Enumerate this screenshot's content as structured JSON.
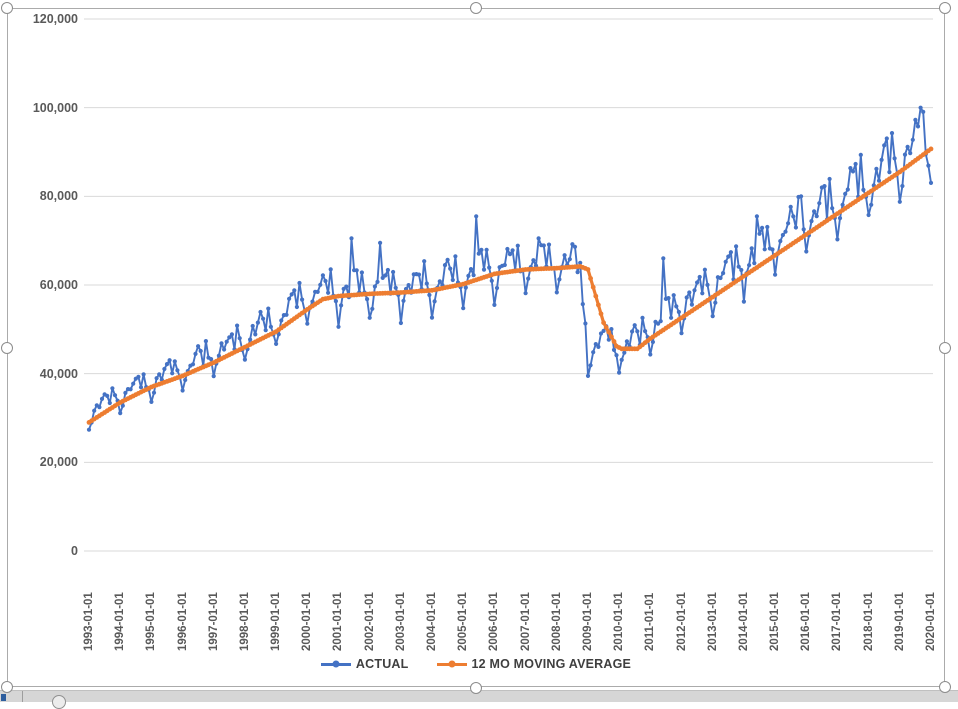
{
  "chart": {
    "selected": true,
    "colors": {
      "actual": "#4472C4",
      "moving_average": "#ED7D31",
      "gridline": "#D9D9D9",
      "axis_text": "#595959",
      "legend_text": "#3F3F3F",
      "frame_border": "#ABABAB"
    }
  },
  "chart_data": {
    "type": "line",
    "title": "",
    "grid": "horizontal",
    "legend_position": "bottom",
    "n_months": 325,
    "x_axis": {
      "frequency": "monthly",
      "start": "1993-01-01",
      "end": "2020-01-01",
      "label_rotation_deg": 90,
      "tick_labels": [
        "1993-01-01",
        "1994-01-01",
        "1995-01-01",
        "1996-01-01",
        "1997-01-01",
        "1998-01-01",
        "1999-01-01",
        "2000-01-01",
        "2001-01-01",
        "2002-01-01",
        "2003-01-01",
        "2004-01-01",
        "2005-01-01",
        "2006-01-01",
        "2007-01-01",
        "2008-01-01",
        "2009-01-01",
        "2010-01-01",
        "2011-01-01",
        "2012-01-01",
        "2013-01-01",
        "2014-01-01",
        "2015-01-01",
        "2016-01-01",
        "2017-01-01",
        "2018-01-01",
        "2019-01-01",
        "2020-01-01"
      ]
    },
    "y_axis": {
      "min": 0,
      "max": 120000,
      "step": 20000,
      "tick_values": [
        0,
        20000,
        40000,
        60000,
        80000,
        100000,
        120000
      ],
      "tick_labels": [
        "0",
        "20,000",
        "40,000",
        "60,000",
        "80,000",
        "100,000",
        "120,000"
      ]
    },
    "series": [
      {
        "name": "ACTUAL",
        "color": "#4472C4",
        "marker": "circle",
        "estimation": "monthly values = trend(breakpoints) * (1 + seasonal[month] + noise) with listed overrides",
        "trend_breakpoints": [
          [
            0,
            30500
          ],
          [
            12,
            35000
          ],
          [
            24,
            38000
          ],
          [
            36,
            40500
          ],
          [
            48,
            44000
          ],
          [
            60,
            47500
          ],
          [
            72,
            51500
          ],
          [
            84,
            56500
          ],
          [
            96,
            57800
          ],
          [
            108,
            58200
          ],
          [
            120,
            58500
          ],
          [
            132,
            59500
          ],
          [
            144,
            61300
          ],
          [
            156,
            63200
          ],
          [
            168,
            63700
          ],
          [
            180,
            64000
          ],
          [
            188,
            63500
          ],
          [
            193,
            43500
          ],
          [
            199,
            47500
          ],
          [
            204,
            44800
          ],
          [
            210,
            46500
          ],
          [
            216,
            49500
          ],
          [
            228,
            55000
          ],
          [
            240,
            59500
          ],
          [
            252,
            64300
          ],
          [
            264,
            69000
          ],
          [
            276,
            73700
          ],
          [
            288,
            78400
          ],
          [
            300,
            83100
          ],
          [
            312,
            87800
          ],
          [
            324,
            91500
          ]
        ],
        "seasonal_monthly_fraction": [
          -0.105,
          -0.05,
          0.005,
          0.03,
          0.005,
          0.055,
          0.075,
          0.07,
          -0.005,
          0.085,
          0.005,
          -0.025
        ],
        "noise_fraction": 0.022,
        "spike_overrides": [
          [
            101,
            70500
          ],
          [
            112,
            69500
          ],
          [
            149,
            75500
          ],
          [
            173,
            70500
          ],
          [
            192,
            39500
          ],
          [
            221,
            66000
          ],
          [
            257,
            75500
          ],
          [
            274,
            80000
          ],
          [
            320,
            100000
          ]
        ]
      },
      {
        "name": "12 MO MOVING AVERAGE",
        "color": "#ED7D31",
        "marker": "circle",
        "breakpoints": [
          [
            0,
            29000
          ],
          [
            12,
            33500
          ],
          [
            24,
            37000
          ],
          [
            36,
            39500
          ],
          [
            48,
            42500
          ],
          [
            60,
            46000
          ],
          [
            72,
            49500
          ],
          [
            84,
            54500
          ],
          [
            90,
            56800
          ],
          [
            96,
            57500
          ],
          [
            108,
            58000
          ],
          [
            120,
            58300
          ],
          [
            132,
            58800
          ],
          [
            144,
            60200
          ],
          [
            156,
            62500
          ],
          [
            168,
            63500
          ],
          [
            180,
            63800
          ],
          [
            189,
            64200
          ],
          [
            192,
            63500
          ],
          [
            198,
            51500
          ],
          [
            203,
            46200
          ],
          [
            205,
            45600
          ],
          [
            211,
            45600
          ],
          [
            216,
            47900
          ],
          [
            228,
            52600
          ],
          [
            240,
            57300
          ],
          [
            252,
            62000
          ],
          [
            264,
            66700
          ],
          [
            276,
            71400
          ],
          [
            288,
            76100
          ],
          [
            300,
            80800
          ],
          [
            312,
            85500
          ],
          [
            324,
            90700
          ]
        ]
      }
    ],
    "notable_values": {
      "actual_start_1993": 28000,
      "actual_pre_recession_peak_2005": 75500,
      "actual_recession_trough_2009": 39500,
      "actual_max_2019": 100000,
      "actual_end_2020": 83000,
      "ma_start_1993": 29000,
      "ma_peak_2008": 64200,
      "ma_trough_2010": 45600,
      "ma_end_2020": 90700
    }
  }
}
